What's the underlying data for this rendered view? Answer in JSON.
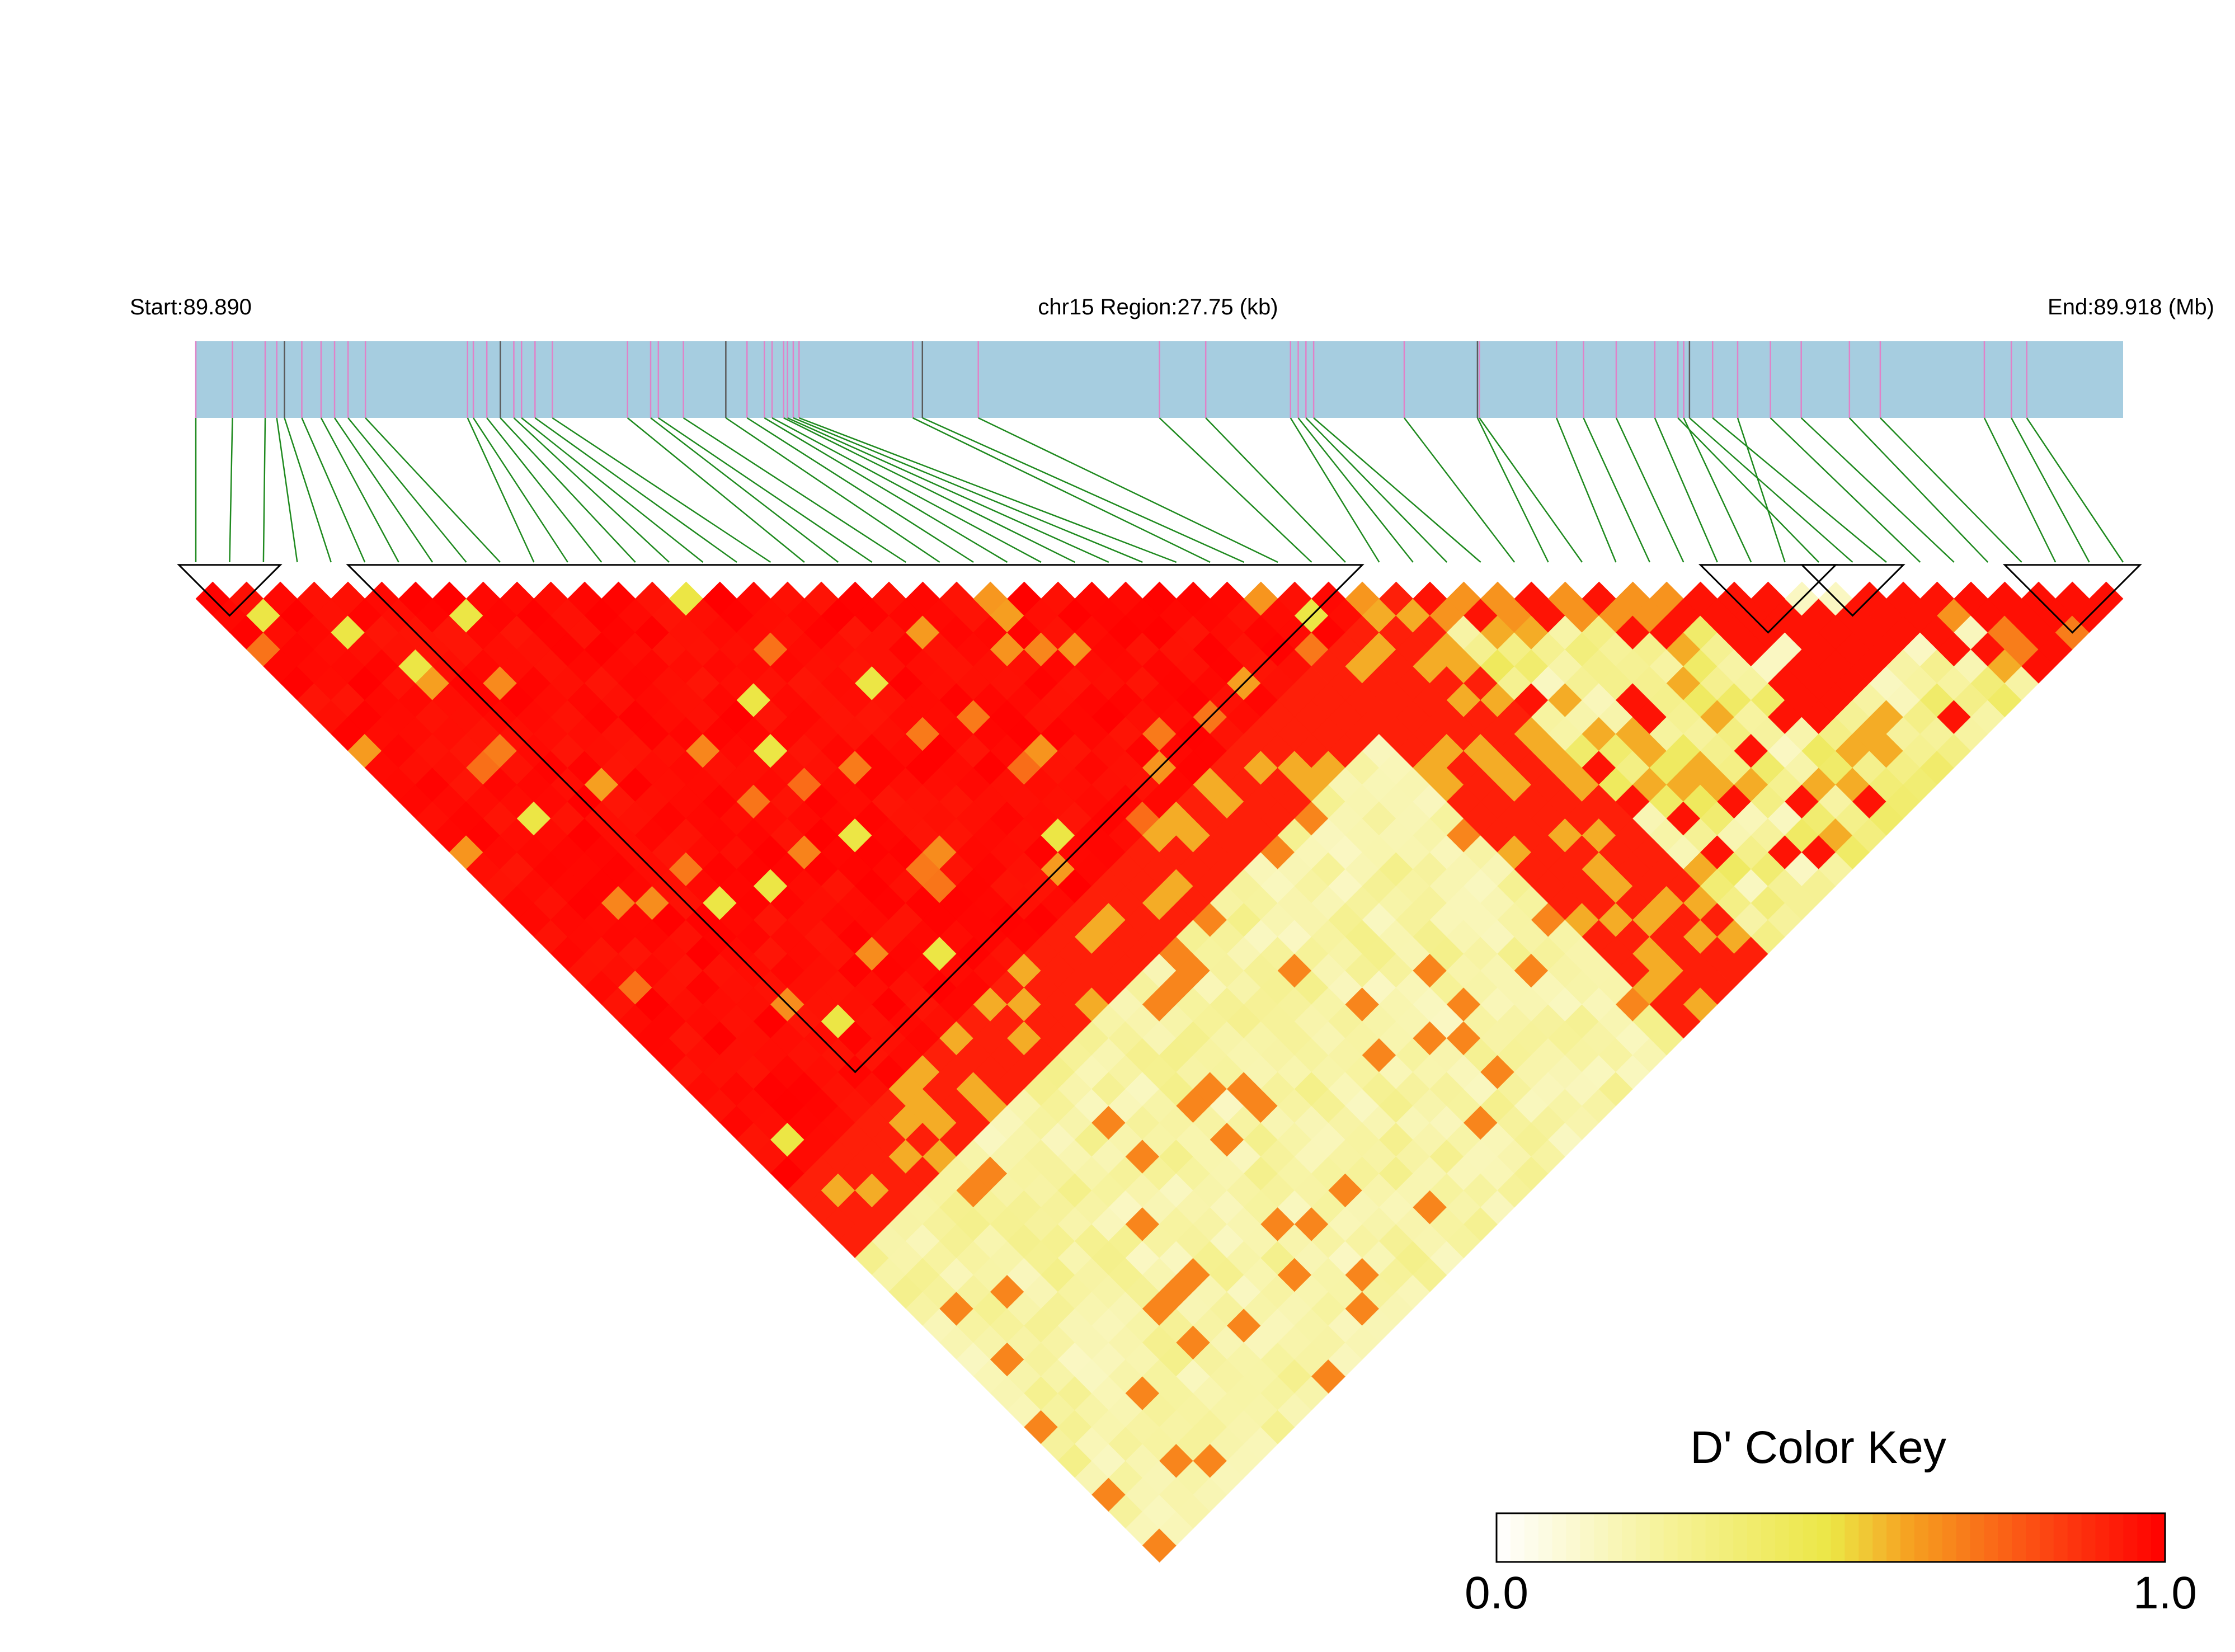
{
  "header": {
    "start_label": "Start:89.890",
    "region_label": "chr15 Region:27.75 (kb)",
    "end_label": "End:89.918 (Mb)"
  },
  "color_key": {
    "title": "D' Color Key",
    "min_label": "0.0",
    "max_label": "1.0"
  },
  "colors": {
    "track_fill": "#a6cde0",
    "snp_tick": "#e082c8",
    "snp_tick_dark": "#5a5a5a",
    "connector": "#1f8a1f",
    "scale": [
      "#ffffff",
      "#f6f29a",
      "#ece645",
      "#f6a020",
      "#fd3a10",
      "#ff0000"
    ]
  },
  "chart_data": {
    "type": "heatmap",
    "title": "",
    "measure": "D'",
    "region": {
      "chromosome": "chr15",
      "start_mb": 89.89,
      "end_mb": 89.918,
      "length_kb": 27.75
    },
    "scale_range": [
      0,
      1
    ],
    "n_snps": 58,
    "snp_positions_fraction": [
      0,
      0.019,
      0.036,
      0.042,
      0.046,
      0.055,
      0.065,
      0.072,
      0.079,
      0.088,
      0.141,
      0.144,
      0.151,
      0.158,
      0.165,
      0.169,
      0.176,
      0.185,
      0.224,
      0.236,
      0.24,
      0.253,
      0.275,
      0.286,
      0.295,
      0.299,
      0.305,
      0.307,
      0.31,
      0.313,
      0.372,
      0.377,
      0.406,
      0.5,
      0.524,
      0.568,
      0.572,
      0.576,
      0.58,
      0.627,
      0.665,
      0.666,
      0.706,
      0.72,
      0.737,
      0.757,
      0.772,
      0.8,
      0.769,
      0.775,
      0.787,
      0.817,
      0.833,
      0.858,
      0.874,
      0.928,
      0.942,
      0.95
    ],
    "blocks": [
      [
        1,
        3
      ],
      [
        6,
        35
      ],
      [
        46,
        49
      ],
      [
        49,
        51
      ],
      [
        55,
        58
      ]
    ],
    "matrix_note": "pairwise D' values between SNP i and j (i<j), 0..1"
  }
}
